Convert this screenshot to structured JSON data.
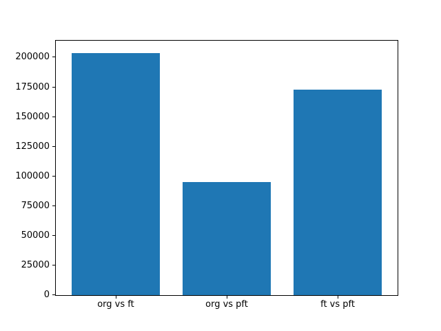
{
  "chart_data": {
    "type": "bar",
    "categories": [
      "org vs ft",
      "org vs pft",
      "ft vs pft"
    ],
    "values": [
      204000,
      95000,
      173000
    ],
    "title": "",
    "xlabel": "",
    "ylabel": "",
    "ylim": [
      0,
      214200
    ],
    "xlim": [
      -0.54,
      2.54
    ],
    "bar_width_units": 0.8,
    "yticks": [
      0,
      25000,
      50000,
      75000,
      100000,
      125000,
      150000,
      175000,
      200000
    ],
    "ytick_labels": [
      "0",
      "25000",
      "50000",
      "75000",
      "100000",
      "125000",
      "150000",
      "175000",
      "200000"
    ],
    "bar_color": "#1f77b4",
    "axes_border_color": "#000000",
    "background_color": "#ffffff",
    "grid": false,
    "legend": null
  }
}
